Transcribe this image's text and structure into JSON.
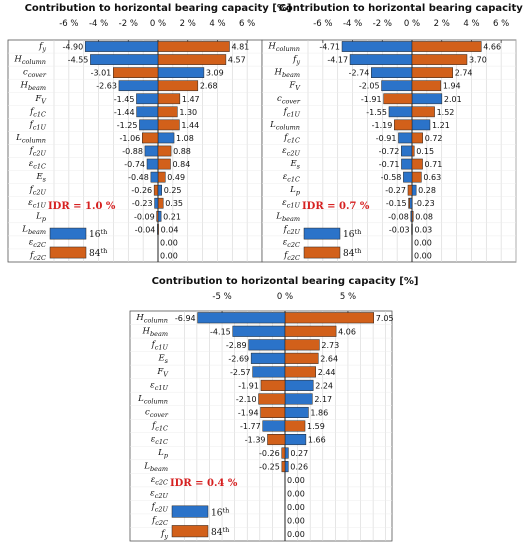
{
  "chart_data": [
    {
      "type": "bar",
      "orientation": "horizontal",
      "title": "Contribution to horizontal bearing capacity [%]",
      "xlim": [
        -7,
        7
      ],
      "xticks": [
        "-6 %",
        "-4 %",
        "-2 %",
        "0 %",
        "2 %",
        "4 %",
        "6 %"
      ],
      "tick_values": [
        -6,
        -4,
        -2,
        0,
        2,
        4,
        6
      ],
      "annotation": "IDR = 1.0 %",
      "rows": [
        {
          "label": "f_y",
          "p16": -4.9,
          "p84": 4.81
        },
        {
          "label": "H_column",
          "p16": -4.55,
          "p84": 4.57
        },
        {
          "label": "c_cover",
          "p16": 3.09,
          "p84": -3.01
        },
        {
          "label": "H_beam",
          "p16": -2.63,
          "p84": 2.68
        },
        {
          "label": "F_V",
          "p16": -1.45,
          "p84": 1.47
        },
        {
          "label": "f_c1C",
          "p16": -1.44,
          "p84": 1.3
        },
        {
          "label": "f_c1U",
          "p16": -1.25,
          "p84": 1.44
        },
        {
          "label": "L_column",
          "p16": 1.08,
          "p84": -1.06
        },
        {
          "label": "f_c2U",
          "p16": -0.88,
          "p84": 0.88
        },
        {
          "label": "ε_c1C",
          "p16": -0.74,
          "p84": 0.84
        },
        {
          "label": "E_s",
          "p16": -0.48,
          "p84": 0.49
        },
        {
          "label": "f_c2U",
          "p16": 0.25,
          "p84": -0.26
        },
        {
          "label": "ε_c1U",
          "p16": -0.23,
          "p84": 0.35
        },
        {
          "label": "L_p",
          "p16": 0.21,
          "p84": -0.09
        },
        {
          "label": "L_beam",
          "p16": -0.04,
          "p84": 0.04
        },
        {
          "label": "ε_c2C",
          "p16": 0.0,
          "p84": 0.0
        },
        {
          "label": "f_c2C",
          "p16": 0.0,
          "p84": 0.0
        }
      ],
      "value_labels": [
        [
          "-4.90",
          "4.81"
        ],
        [
          "-4.55",
          "4.57"
        ],
        [
          "-3.01",
          "3.09"
        ],
        [
          "-2.63",
          "2.68"
        ],
        [
          "-1.45",
          "1.47"
        ],
        [
          "-1.44",
          "1.30"
        ],
        [
          "-1.25",
          "1.44"
        ],
        [
          "-1.06",
          "1.08"
        ],
        [
          "-0.88",
          "0.88"
        ],
        [
          "-0.74",
          "0.84"
        ],
        [
          "-0.48",
          "0.49"
        ],
        [
          "-0.26",
          "0.25"
        ],
        [
          "-0.23",
          "0.35"
        ],
        [
          "-0.09",
          "0.21"
        ],
        [
          "-0.04",
          "0.04"
        ],
        [
          "",
          "0.00"
        ],
        [
          "",
          "0.00"
        ]
      ]
    },
    {
      "type": "bar",
      "orientation": "horizontal",
      "title": "Contribution to horizontal bearing capacity [%]",
      "xlim": [
        -7,
        7
      ],
      "xticks": [
        "-6 %",
        "-4 %",
        "-2 %",
        "0 %",
        "2 %",
        "4 %",
        "6 %"
      ],
      "tick_values": [
        -6,
        -4,
        -2,
        0,
        2,
        4,
        6
      ],
      "annotation": "IDR = 0.7 %",
      "rows": [
        {
          "label": "H_column",
          "p16": -4.71,
          "p84": 4.66
        },
        {
          "label": "f_y",
          "p16": -4.17,
          "p84": 3.7
        },
        {
          "label": "H_beam",
          "p16": -2.74,
          "p84": 2.74
        },
        {
          "label": "F_V",
          "p16": -2.05,
          "p84": 1.94
        },
        {
          "label": "c_cover",
          "p16": 2.01,
          "p84": -1.91
        },
        {
          "label": "f_c1U",
          "p16": -1.55,
          "p84": 1.52
        },
        {
          "label": "L_column",
          "p16": 1.21,
          "p84": -1.19
        },
        {
          "label": "f_c1C",
          "p16": -0.91,
          "p84": 0.72
        },
        {
          "label": "ε_c2U",
          "p16": -0.72,
          "p84": 0.15
        },
        {
          "label": "E_s",
          "p16": -0.71,
          "p84": 0.71
        },
        {
          "label": "ε_c1C",
          "p16": -0.58,
          "p84": 0.63
        },
        {
          "label": "L_p",
          "p16": 0.28,
          "p84": -0.27
        },
        {
          "label": "ε_c1U",
          "p16": -0.15,
          "p84": -0.23
        },
        {
          "label": "L_beam",
          "p16": -0.08,
          "p84": 0.08
        },
        {
          "label": "f_c2U",
          "p16": -0.03,
          "p84": 0.03
        },
        {
          "label": "ε_c2C",
          "p16": 0.0,
          "p84": 0.0
        },
        {
          "label": "f_c2C",
          "p16": 0.0,
          "p84": 0.0
        }
      ],
      "value_labels": [
        [
          "-4.71",
          "4.66"
        ],
        [
          "-4.17",
          "3.70"
        ],
        [
          "-2.74",
          "2.74"
        ],
        [
          "-2.05",
          "1.94"
        ],
        [
          "-1.91",
          "2.01"
        ],
        [
          "-1.55",
          "1.52"
        ],
        [
          "-1.19",
          "1.21"
        ],
        [
          "-0.91",
          "0.72"
        ],
        [
          "-0.72",
          "0.15"
        ],
        [
          "-0.71",
          "0.71"
        ],
        [
          "-0.58",
          "0.63"
        ],
        [
          "-0.27",
          "0.28"
        ],
        [
          "-0.15",
          "-0.23"
        ],
        [
          "-0.08",
          "0.08"
        ],
        [
          "-0.03",
          "0.03"
        ],
        [
          "",
          "0.00"
        ],
        [
          "",
          "0.00"
        ]
      ]
    },
    {
      "type": "bar",
      "orientation": "horizontal",
      "title": "Contribution to horizontal bearing capacity [%]",
      "xlim": [
        -8.5,
        8.5
      ],
      "xticks": [
        "-5 %",
        "0 %",
        "5 %"
      ],
      "tick_values": [
        -5,
        0,
        5
      ],
      "annotation": "IDR = 0.4 %",
      "rows": [
        {
          "label": "H_column",
          "p16": -6.94,
          "p84": 7.05
        },
        {
          "label": "H_beam",
          "p16": -4.15,
          "p84": 4.06
        },
        {
          "label": "f_c1U",
          "p16": -2.89,
          "p84": 2.73
        },
        {
          "label": "E_s",
          "p16": -2.69,
          "p84": 2.64
        },
        {
          "label": "F_V",
          "p16": -2.57,
          "p84": 2.44
        },
        {
          "label": "ε_c1U",
          "p16": 2.24,
          "p84": -1.91
        },
        {
          "label": "L_column",
          "p16": 2.17,
          "p84": -2.1
        },
        {
          "label": "c_cover",
          "p16": 1.86,
          "p84": -1.94
        },
        {
          "label": "f_c1C",
          "p16": -1.77,
          "p84": 1.59
        },
        {
          "label": "ε_c1C",
          "p16": 1.66,
          "p84": -1.39
        },
        {
          "label": "L_p",
          "p16": 0.27,
          "p84": -0.26
        },
        {
          "label": "L_beam",
          "p16": 0.26,
          "p84": -0.25
        },
        {
          "label": "ε_c2C",
          "p16": 0.0,
          "p84": 0.0
        },
        {
          "label": "ε_c2U",
          "p16": 0.0,
          "p84": 0.0
        },
        {
          "label": "f_c2U",
          "p16": 0.0,
          "p84": 0.0
        },
        {
          "label": "f_c2C",
          "p16": 0.0,
          "p84": 0.0
        },
        {
          "label": "f_y",
          "p16": 0.0,
          "p84": 0.0
        }
      ],
      "value_labels": [
        [
          "-6.94",
          "7.05"
        ],
        [
          "-4.15",
          "4.06"
        ],
        [
          "-2.89",
          "2.73"
        ],
        [
          "-2.69",
          "2.64"
        ],
        [
          "-2.57",
          "2.44"
        ],
        [
          "-1.91",
          "2.24"
        ],
        [
          "-2.10",
          "2.17"
        ],
        [
          "-1.94",
          "1.86"
        ],
        [
          "-1.77",
          "1.59"
        ],
        [
          "-1.39",
          "1.66"
        ],
        [
          "-0.26",
          "0.27"
        ],
        [
          "-0.25",
          "0.26"
        ],
        [
          "",
          "0.00"
        ],
        [
          "",
          "0.00"
        ],
        [
          "",
          "0.00"
        ],
        [
          "",
          "0.00"
        ],
        [
          "",
          "0.00"
        ]
      ]
    }
  ],
  "legend": {
    "p16": "16th",
    "p84": "84th"
  },
  "colors": {
    "p16": "#2b73c9",
    "p84": "#d2601a",
    "grid": "#d4d4d4",
    "annotation": "#d62020"
  }
}
